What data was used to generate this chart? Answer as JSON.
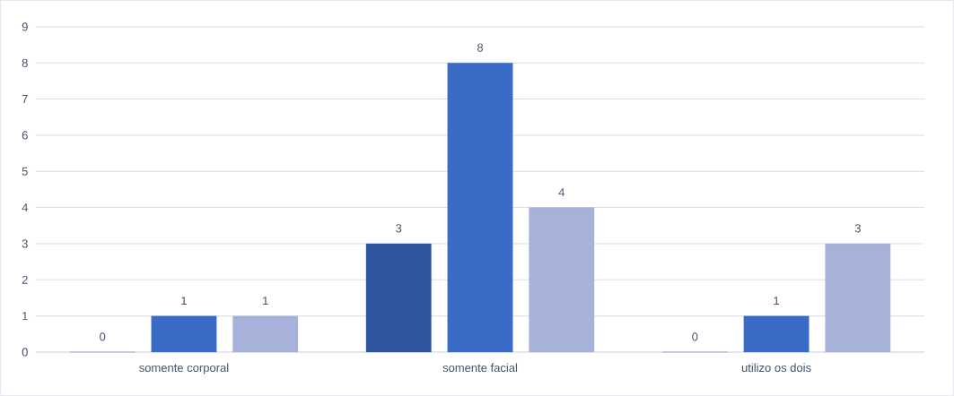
{
  "chart_data": {
    "type": "bar",
    "categories": [
      "somente corporal",
      "somente facial",
      "utilizo os dois"
    ],
    "series": [
      {
        "color": "#2f569f",
        "values": [
          0,
          3,
          0
        ],
        "value_labels": [
          "0",
          "3",
          "0"
        ]
      },
      {
        "color": "#3a6bc6",
        "values": [
          1,
          8,
          1
        ],
        "value_labels": [
          "1",
          "8",
          "1"
        ]
      },
      {
        "color": "#a6b2da",
        "values": [
          1,
          4,
          3
        ],
        "value_labels": [
          "1",
          "4",
          "3"
        ]
      }
    ],
    "ylim": [
      0,
      9
    ],
    "yticks": [
      0,
      1,
      2,
      3,
      4,
      5,
      6,
      7,
      8,
      9
    ],
    "grid": "y"
  }
}
